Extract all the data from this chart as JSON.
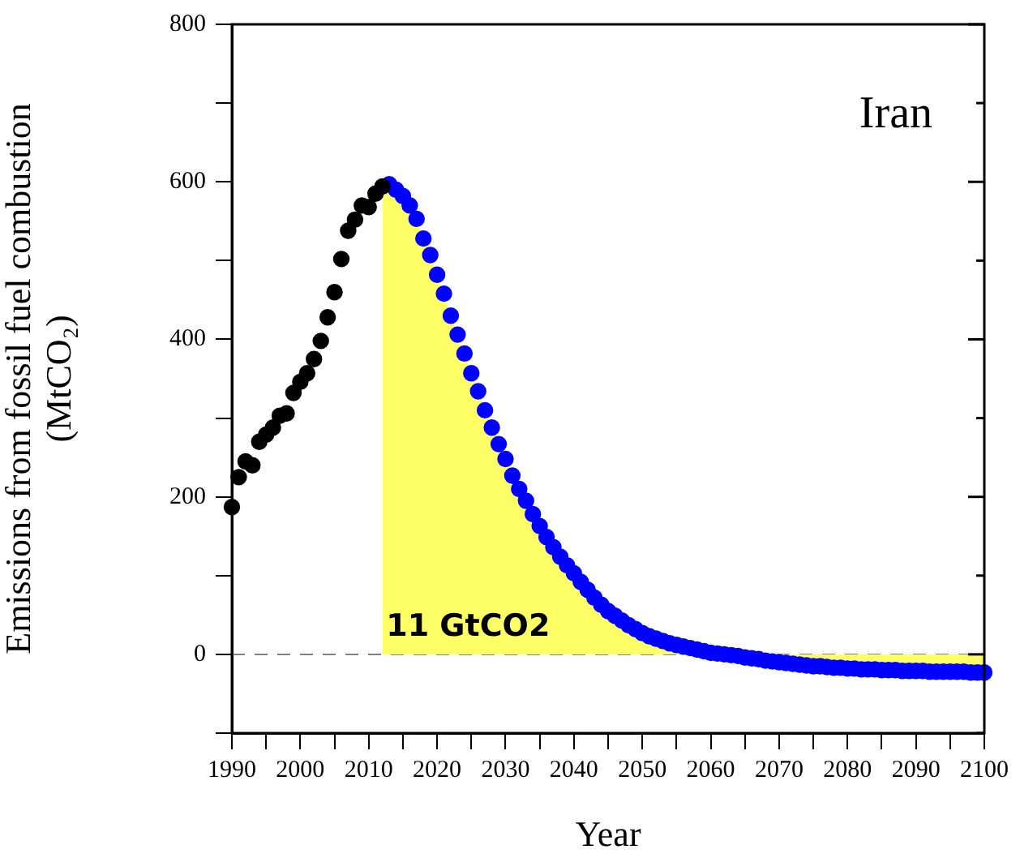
{
  "chart_data": {
    "type": "scatter",
    "title": "Iran",
    "xlabel": "Year",
    "ylabel": "Emissions from fossil fuel combustion\n(MtCO₂)",
    "xlim": [
      1990,
      2100
    ],
    "xticks": [
      1990,
      {
        "value": 1995,
        "label": null
      },
      2000,
      {
        "value": 2005,
        "label": null
      },
      2010,
      {
        "value": 2015,
        "label": null
      },
      2020,
      {
        "value": 2025,
        "label": null
      },
      2030,
      {
        "value": 2035,
        "label": null
      },
      2040,
      {
        "value": 2045,
        "label": null
      },
      2050,
      {
        "value": 2055,
        "label": null
      },
      2060,
      {
        "value": 2065,
        "label": null
      },
      2070,
      {
        "value": 2075,
        "label": null
      },
      2080,
      {
        "value": 2085,
        "label": null
      },
      2090,
      {
        "value": 2095,
        "label": null
      },
      2100
    ],
    "ylim": [
      -100,
      800
    ],
    "yticks": [
      {
        "value": -100,
        "label": null
      },
      0,
      {
        "value": 100,
        "label": null
      },
      200,
      {
        "value": 300,
        "label": null
      },
      400,
      {
        "value": 500,
        "label": null
      },
      600,
      {
        "value": 700,
        "label": null
      },
      800
    ],
    "marker": "circle",
    "grid": false,
    "legend": false,
    "ref_lines": [
      {
        "axis": "y",
        "value": 0,
        "color": "#808080",
        "line_style": "dashed"
      }
    ],
    "annotations": [
      "11 GtCO2"
    ],
    "series": [
      {
        "type": "area",
        "color": "#ffff66",
        "marker": "none",
        "x": [
          2012,
          2013,
          2014,
          2015,
          2016,
          2017,
          2018,
          2019,
          2020,
          2021,
          2022,
          2023,
          2024,
          2025,
          2026,
          2027,
          2028,
          2029,
          2030,
          2031,
          2032,
          2033,
          2034,
          2035,
          2036,
          2037,
          2038,
          2039,
          2040,
          2041,
          2042,
          2043,
          2044,
          2045,
          2046,
          2047,
          2048,
          2049,
          2050,
          2051,
          2052,
          2053,
          2054,
          2055,
          2056,
          2057,
          2058,
          2059,
          2060,
          2061,
          2062,
          2063,
          2064,
          2065,
          2066,
          2067,
          2068,
          2069,
          2070,
          2071,
          2072,
          2073,
          2074,
          2075,
          2076,
          2077,
          2078,
          2079,
          2080,
          2081,
          2082,
          2083,
          2084,
          2085,
          2086,
          2087,
          2088,
          2089,
          2090,
          2091,
          2092,
          2093,
          2094,
          2095,
          2096,
          2097,
          2098,
          2099,
          2100
        ],
        "values": [
          594,
          597,
          590,
          582,
          570,
          553,
          528,
          507,
          482,
          458,
          430,
          406,
          382,
          357,
          334,
          310,
          288,
          267,
          248,
          227,
          210,
          195,
          178,
          163,
          149,
          136,
          124,
          113,
          103,
          92,
          82,
          72,
          63,
          55,
          49,
          43,
          37,
          32,
          27,
          23,
          20,
          17,
          14,
          12,
          10,
          8,
          6,
          4,
          2,
          1,
          0,
          -1,
          -2,
          -4,
          -5,
          -6,
          -8,
          -9,
          -10,
          -11,
          -12,
          -13,
          -14,
          -15,
          -15,
          -16,
          -17,
          -17,
          -18,
          -18,
          -19,
          -19,
          -19,
          -20,
          -20,
          -20,
          -21,
          -21,
          -21,
          -21,
          -22,
          -22,
          -22,
          -22,
          -22,
          -22,
          -23,
          -23,
          -23
        ]
      },
      {
        "color": "#000000",
        "x": [
          1990,
          1991,
          1992,
          1993,
          1994,
          1995,
          1996,
          1997,
          1998,
          1999,
          2000,
          2001,
          2002,
          2003,
          2004,
          2005,
          2006,
          2007,
          2008,
          2009,
          2010,
          2011,
          2012
        ],
        "values": [
          187,
          225,
          245,
          240,
          270,
          279,
          288,
          303,
          306,
          332,
          346,
          357,
          375,
          398,
          428,
          460,
          502,
          538,
          552,
          570,
          568,
          585,
          594
        ]
      },
      {
        "color": "#0000ff",
        "x": [
          2013,
          2014,
          2015,
          2016,
          2017,
          2018,
          2019,
          2020,
          2021,
          2022,
          2023,
          2024,
          2025,
          2026,
          2027,
          2028,
          2029,
          2030,
          2031,
          2032,
          2033,
          2034,
          2035,
          2036,
          2037,
          2038,
          2039,
          2040,
          2041,
          2042,
          2043,
          2044,
          2045,
          2046,
          2047,
          2048,
          2049,
          2050,
          2051,
          2052,
          2053,
          2054,
          2055,
          2056,
          2057,
          2058,
          2059,
          2060,
          2061,
          2062,
          2063,
          2064,
          2065,
          2066,
          2067,
          2068,
          2069,
          2070,
          2071,
          2072,
          2073,
          2074,
          2075,
          2076,
          2077,
          2078,
          2079,
          2080,
          2081,
          2082,
          2083,
          2084,
          2085,
          2086,
          2087,
          2088,
          2089,
          2090,
          2091,
          2092,
          2093,
          2094,
          2095,
          2096,
          2097,
          2098,
          2099,
          2100
        ],
        "values": [
          597,
          590,
          582,
          570,
          553,
          528,
          507,
          482,
          458,
          430,
          406,
          382,
          357,
          334,
          310,
          288,
          267,
          248,
          227,
          210,
          195,
          178,
          163,
          149,
          136,
          124,
          113,
          103,
          92,
          82,
          72,
          63,
          55,
          49,
          43,
          37,
          32,
          27,
          23,
          20,
          17,
          14,
          12,
          10,
          8,
          6,
          4,
          2,
          1,
          0,
          -1,
          -2,
          -4,
          -5,
          -6,
          -8,
          -9,
          -10,
          -11,
          -12,
          -13,
          -14,
          -15,
          -15,
          -16,
          -17,
          -17,
          -18,
          -18,
          -19,
          -19,
          -19,
          -20,
          -20,
          -20,
          -21,
          -21,
          -21,
          -21,
          -22,
          -22,
          -22,
          -22,
          -22,
          -22,
          -23,
          -23,
          -23
        ]
      }
    ]
  }
}
